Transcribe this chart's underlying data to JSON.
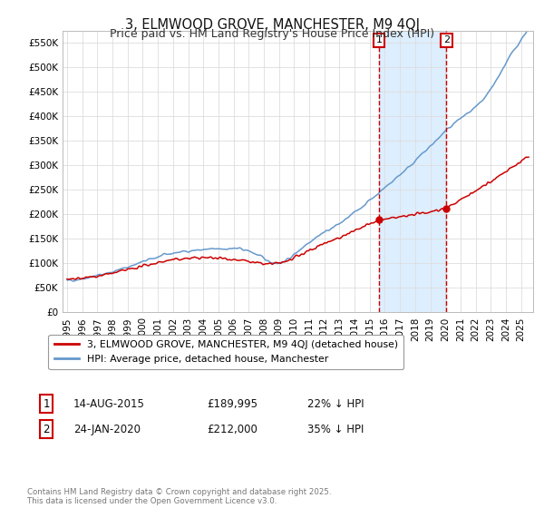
{
  "title": "3, ELMWOOD GROVE, MANCHESTER, M9 4QJ",
  "subtitle": "Price paid vs. HM Land Registry's House Price Index (HPI)",
  "ylim": [
    0,
    575000
  ],
  "yticks": [
    0,
    50000,
    100000,
    150000,
    200000,
    250000,
    300000,
    350000,
    400000,
    450000,
    500000,
    550000
  ],
  "xticks": [
    1995,
    1996,
    1997,
    1998,
    1999,
    2000,
    2001,
    2002,
    2003,
    2004,
    2005,
    2006,
    2007,
    2008,
    2009,
    2010,
    2011,
    2012,
    2013,
    2014,
    2015,
    2016,
    2017,
    2018,
    2019,
    2020,
    2021,
    2022,
    2023,
    2024,
    2025
  ],
  "property_color": "#cc0000",
  "hpi_color": "#6699cc",
  "purchase1_date": 2015.62,
  "purchase1_price": 189995,
  "purchase2_date": 2020.07,
  "purchase2_price": 212000,
  "vline_color": "#cc0000",
  "shade_color": "#ddeeff",
  "legend_property": "3, ELMWOOD GROVE, MANCHESTER, M9 4QJ (detached house)",
  "legend_hpi": "HPI: Average price, detached house, Manchester",
  "annotation1_date": "14-AUG-2015",
  "annotation1_price": "£189,995",
  "annotation1_hpi": "22% ↓ HPI",
  "annotation2_date": "24-JAN-2020",
  "annotation2_price": "£212,000",
  "annotation2_hpi": "35% ↓ HPI",
  "footer": "Contains HM Land Registry data © Crown copyright and database right 2025.\nThis data is licensed under the Open Government Licence v3.0.",
  "background_color": "#ffffff",
  "grid_color": "#dddddd"
}
